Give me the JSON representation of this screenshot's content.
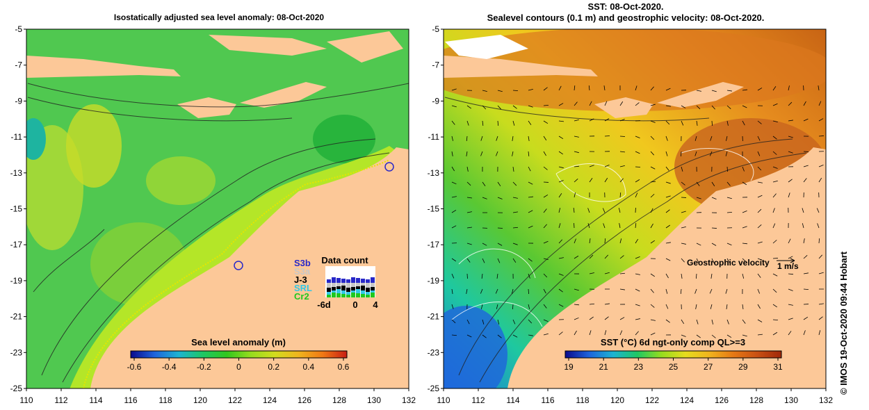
{
  "left_panel": {
    "title": "Isostatically adjusted sea level anomaly: 08-Oct-2020",
    "colorbar": {
      "label": "Sea level anomaly (m)",
      "ticks": [
        "-0.6",
        "-0.4",
        "-0.2",
        "0",
        "0.2",
        "0.4",
        "0.6"
      ],
      "colors": [
        "#0a0a8c",
        "#1e64dc",
        "#1eb4d2",
        "#1ec864",
        "#32c81e",
        "#96dc1e",
        "#d2dc1e",
        "#f0b41e",
        "#f07814",
        "#c81e14"
      ]
    },
    "data_count": {
      "title": "Data count",
      "missions": [
        "S3b",
        "S3a",
        "J-3",
        "SRL",
        "Cr2"
      ],
      "mission_colors": [
        "#2828c8",
        "#c8c8c8",
        "#000000",
        "#32c8e6",
        "#1ec81e"
      ],
      "x_ticks": [
        "-6d",
        "0",
        "4"
      ]
    }
  },
  "right_panel": {
    "title_line1": "SST: 08-Oct-2020.",
    "title_line2": "Sealevel contours (0.1 m) and geostrophic velocity: 08-Oct-2020.",
    "colorbar": {
      "label": "SST (°C) 6d ngt-only comp QL>=3",
      "ticks": [
        "19",
        "21",
        "23",
        "25",
        "27",
        "29",
        "31"
      ],
      "colors": [
        "#0a0a8c",
        "#1e64dc",
        "#1eb4d2",
        "#1ec864",
        "#96dc1e",
        "#e6dc1e",
        "#f0b41e",
        "#e67814",
        "#c85014",
        "#a0280a"
      ]
    },
    "velocity_legend": {
      "label": "Geostrophic velocity",
      "scale": "1 m/s"
    }
  },
  "axes": {
    "y_ticks": [
      "-5",
      "-7",
      "-9",
      "-11",
      "-13",
      "-15",
      "-17",
      "-19",
      "-21",
      "-23",
      "-25"
    ],
    "x_ticks": [
      "110",
      "112",
      "114",
      "116",
      "118",
      "120",
      "122",
      "124",
      "126",
      "128",
      "130",
      "132"
    ]
  },
  "colors": {
    "land": "#fcc898",
    "ocean_sla": "#46c846",
    "ocean_sst": "#e6a01e"
  },
  "credit": "© IMOS 19-Oct-2020 09:44 Hobart"
}
